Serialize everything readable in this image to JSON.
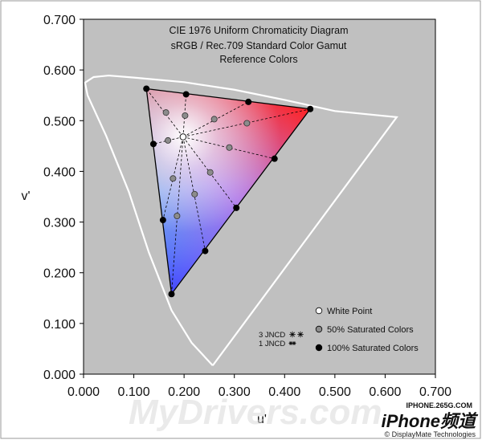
{
  "chart_data": {
    "type": "scatter",
    "title_lines": [
      "CIE 1976 Uniform Chromaticity Diagram",
      "sRGB / Rec.709 Standard Color Gamut",
      "Reference Colors"
    ],
    "xlabel": "u'",
    "ylabel": "v'",
    "xlim": [
      0,
      0.7
    ],
    "ylim": [
      0,
      0.7
    ],
    "x_ticks": [
      0.0,
      0.1,
      0.2,
      0.3,
      0.4,
      0.5,
      0.6,
      0.7
    ],
    "y_ticks": [
      0.0,
      0.1,
      0.2,
      0.3,
      0.4,
      0.5,
      0.6,
      0.7
    ],
    "x_tick_labels": [
      "0.000",
      "0.100",
      "0.200",
      "0.300",
      "0.400",
      "0.500",
      "0.600",
      "0.700"
    ],
    "y_tick_labels": [
      "0.000",
      "0.100",
      "0.200",
      "0.300",
      "0.400",
      "0.500",
      "0.600",
      "0.700"
    ],
    "plot_background": "#c0c0c0",
    "grid": false,
    "spectral_locus": [
      [
        0.257,
        0.017
      ],
      [
        0.215,
        0.062
      ],
      [
        0.175,
        0.126
      ],
      [
        0.13,
        0.24
      ],
      [
        0.09,
        0.36
      ],
      [
        0.045,
        0.47
      ],
      [
        0.008,
        0.55
      ],
      [
        0.003,
        0.575
      ],
      [
        0.02,
        0.586
      ],
      [
        0.05,
        0.589
      ],
      [
        0.1,
        0.585
      ],
      [
        0.2,
        0.576
      ],
      [
        0.3,
        0.561
      ],
      [
        0.4,
        0.541
      ],
      [
        0.5,
        0.519
      ],
      [
        0.623,
        0.507
      ],
      [
        0.257,
        0.017
      ]
    ],
    "gamut_triangle": {
      "red": [
        0.451,
        0.523
      ],
      "green": [
        0.125,
        0.563
      ],
      "blue": [
        0.175,
        0.158
      ]
    },
    "white_point": [
      0.198,
      0.468
    ],
    "saturated_100": [
      [
        0.451,
        0.523
      ],
      [
        0.125,
        0.563
      ],
      [
        0.175,
        0.158
      ],
      [
        0.204,
        0.552
      ],
      [
        0.328,
        0.537
      ],
      [
        0.139,
        0.454
      ],
      [
        0.158,
        0.304
      ],
      [
        0.38,
        0.425
      ],
      [
        0.304,
        0.328
      ],
      [
        0.242,
        0.243
      ]
    ],
    "saturated_50": [
      [
        0.164,
        0.516
      ],
      [
        0.202,
        0.51
      ],
      [
        0.26,
        0.503
      ],
      [
        0.325,
        0.495
      ],
      [
        0.168,
        0.461
      ],
      [
        0.178,
        0.386
      ],
      [
        0.186,
        0.312
      ],
      [
        0.221,
        0.355
      ],
      [
        0.252,
        0.398
      ],
      [
        0.29,
        0.447
      ]
    ],
    "legend": {
      "position": "lower-right",
      "items": [
        {
          "label": "White Point",
          "marker": "open-circle"
        },
        {
          "label": "50% Saturated Colors",
          "marker": "gray-circle"
        },
        {
          "label": "100% Saturated Colors",
          "marker": "black-circle"
        }
      ]
    },
    "jncd": {
      "three": "3 JNCD",
      "one": "1 JNCD",
      "three_radius": 0.0121,
      "one_radius": 0.004
    }
  },
  "watermarks": {
    "main": "MyDrivers.com",
    "iphone": "iPhone频道",
    "site": "IPHONE.265G.COM",
    "credit": "© DisplayMate Technologies"
  },
  "colors": {
    "point_black": "#000000",
    "point_gray": "#8c8c8c",
    "locus": "#ffffff",
    "triangle_edge": "#000000"
  }
}
